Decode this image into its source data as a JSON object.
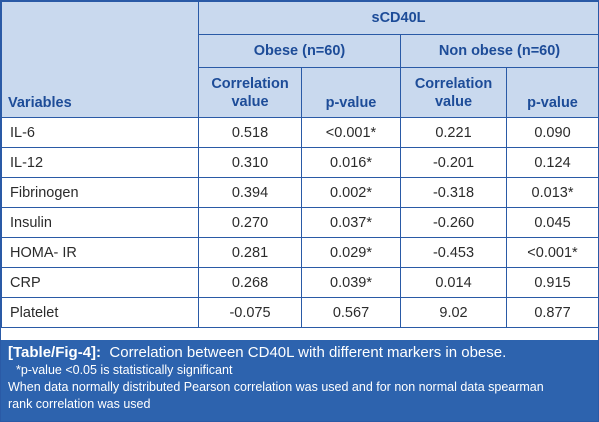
{
  "table": {
    "group_header": "sCD40L",
    "subgroups": [
      "Obese (n=60)",
      "Non obese (n=60)"
    ],
    "variables_header": "Variables",
    "column_headers": [
      "Correlation value",
      "p-value",
      "Correlation value",
      "p-value"
    ],
    "rows": [
      {
        "variable": "IL-6",
        "values": [
          "0.518",
          "<0.001*",
          "0.221",
          "0.090"
        ]
      },
      {
        "variable": "IL-12",
        "values": [
          "0.310",
          "0.016*",
          "-0.201",
          "0.124"
        ]
      },
      {
        "variable": "Fibrinogen",
        "values": [
          "0.394",
          "0.002*",
          "-0.318",
          "0.013*"
        ]
      },
      {
        "variable": "Insulin",
        "values": [
          "0.270",
          "0.037*",
          "-0.260",
          "0.045"
        ]
      },
      {
        "variable": "HOMA- IR",
        "values": [
          "0.281",
          "0.029*",
          "-0.453",
          "<0.001*"
        ]
      },
      {
        "variable": "CRP",
        "values": [
          "0.268",
          "0.039*",
          "0.014",
          "0.915"
        ]
      },
      {
        "variable": "Platelet",
        "values": [
          "-0.075",
          "0.567",
          "9.02",
          "0.877"
        ]
      }
    ]
  },
  "caption": {
    "label": "[Table/Fig-4]:",
    "title": "Correlation between CD40L with different markers in obese.",
    "note1": "*p-value <0.05 is statistically significant",
    "note2": "When data normally distributed Pearson correlation was used and for non normal data spearman",
    "note3": "rank correlation was used"
  },
  "colors": {
    "border": "#2a5aa6",
    "header_bg": "#c9d9ee",
    "header_text": "#1d4c98",
    "caption_bg": "#2d63ae"
  }
}
